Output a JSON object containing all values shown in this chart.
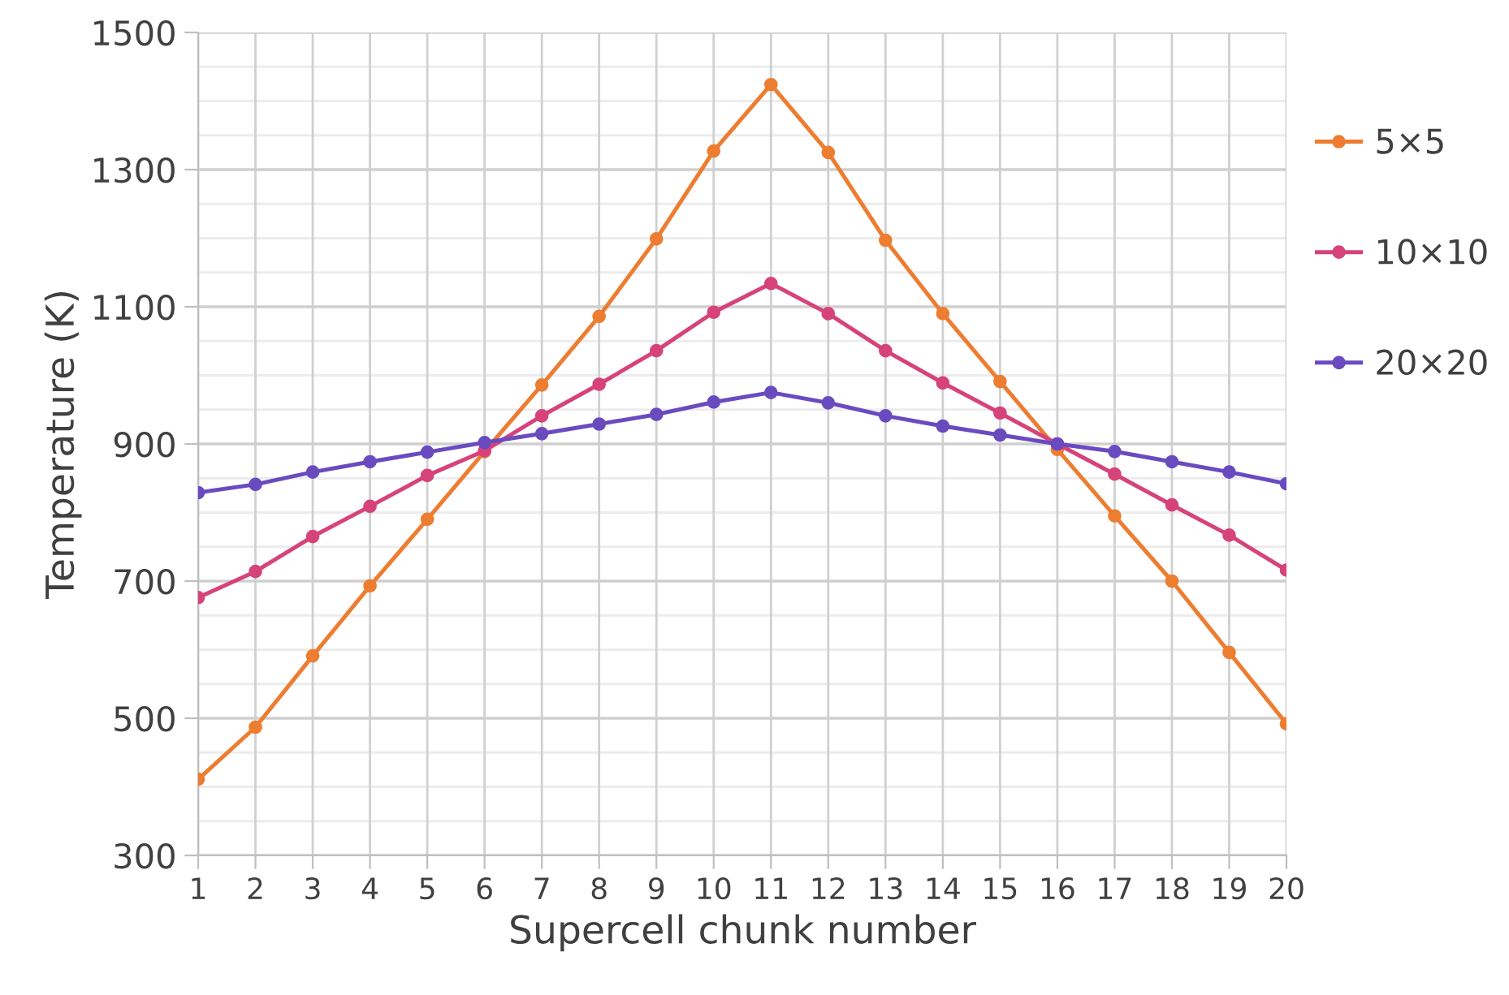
{
  "chart_data": {
    "type": "line",
    "xlabel": "Supercell chunk number",
    "ylabel": "Temperature (K)",
    "categories": [
      "1",
      "2",
      "3",
      "4",
      "5",
      "6",
      "7",
      "8",
      "9",
      "10",
      "11",
      "12",
      "13",
      "14",
      "15",
      "16",
      "17",
      "18",
      "19",
      "20"
    ],
    "series": [
      {
        "name": "5×5",
        "color": "#ed7d31",
        "values": [
          411,
          487,
          591,
          693,
          790,
          889,
          986,
          1086,
          1199,
          1327,
          1424,
          1325,
          1197,
          1090,
          991,
          892,
          795,
          700,
          596,
          492
        ]
      },
      {
        "name": "10×10",
        "color": "#d6437a",
        "values": [
          676,
          714,
          765,
          809,
          854,
          890,
          941,
          987,
          1036,
          1092,
          1134,
          1090,
          1036,
          989,
          945,
          900,
          856,
          811,
          767,
          716
        ]
      },
      {
        "name": "20×20",
        "color": "#6a4bbf",
        "values": [
          829,
          841,
          859,
          874,
          888,
          902,
          915,
          929,
          943,
          961,
          975,
          960,
          941,
          926,
          913,
          900,
          889,
          874,
          859,
          842
        ]
      }
    ],
    "ylim": [
      300,
      1500
    ],
    "yticks": [
      300,
      500,
      700,
      900,
      1100,
      1300,
      1500
    ],
    "grid": true,
    "legend": "right",
    "marker": "circle",
    "line_style": "solid"
  }
}
